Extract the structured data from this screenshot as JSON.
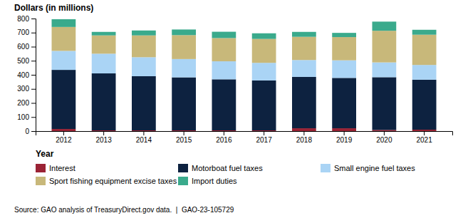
{
  "chart_data": {
    "type": "bar",
    "stacked": true,
    "categories": [
      "2012",
      "2013",
      "2014",
      "2015",
      "2016",
      "2017",
      "2018",
      "2019",
      "2020",
      "2021"
    ],
    "series": [
      {
        "name": "Interest",
        "color": "#9b2335",
        "values": [
          15,
          5,
          5,
          5,
          5,
          5,
          20,
          20,
          8,
          10
        ]
      },
      {
        "name": "Motorboat fuel taxes",
        "color": "#0d2240",
        "values": [
          420,
          405,
          385,
          377,
          363,
          355,
          365,
          358,
          375,
          355
        ]
      },
      {
        "name": "Small engine fuel taxes",
        "color": "#aad4f5",
        "values": [
          135,
          140,
          135,
          130,
          128,
          125,
          120,
          125,
          105,
          105
        ]
      },
      {
        "name": "Sport fishing equipment excise taxes",
        "color": "#c8b87a",
        "values": [
          170,
          130,
          155,
          170,
          165,
          170,
          165,
          165,
          225,
          215
        ]
      },
      {
        "name": "Import duties",
        "color": "#3aaa8c",
        "values": [
          55,
          25,
          35,
          40,
          45,
          40,
          35,
          30,
          65,
          35
        ]
      }
    ],
    "y_label": "Dollars (in millions)",
    "x_label": "Year",
    "annotations": [
      "Source: GAO analysis of TreasuryDirect.gov data.  |  GAO-23-105729"
    ],
    "ylim": [
      0,
      800
    ],
    "yticks": [
      0,
      100,
      200,
      300,
      400,
      500,
      600,
      700,
      800
    ],
    "grid": false,
    "legend": "bottom"
  }
}
